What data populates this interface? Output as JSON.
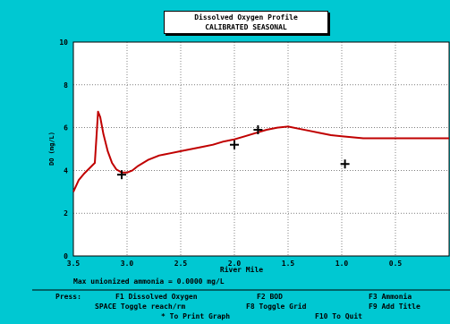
{
  "chart_data": {
    "type": "line",
    "title": "Dissolved Oxygen Profile",
    "subtitle": "CALIBRATED SEASONAL",
    "xlabel": "River Mile",
    "ylabel": "DO (mg/L)",
    "xlim": [
      3.5,
      0.0
    ],
    "ylim": [
      0,
      10
    ],
    "x_ticks": [
      "3.5",
      "3.0",
      "2.5",
      "2.0",
      "1.5",
      "1.0",
      "0.5"
    ],
    "y_ticks": [
      "0",
      "2",
      "4",
      "6",
      "8",
      "10"
    ],
    "grid": true,
    "series": [
      {
        "color": "#c00000",
        "x": [
          3.5,
          3.45,
          3.4,
          3.35,
          3.3,
          3.27,
          3.25,
          3.22,
          3.18,
          3.14,
          3.1,
          3.05,
          3.0,
          2.95,
          2.9,
          2.85,
          2.8,
          2.75,
          2.7,
          2.65,
          2.6,
          2.5,
          2.4,
          2.3,
          2.2,
          2.1,
          2.0,
          1.9,
          1.8,
          1.7,
          1.6,
          1.5,
          1.4,
          1.3,
          1.2,
          1.1,
          1.0,
          0.9,
          0.8,
          0.7,
          0.6,
          0.5,
          0.4,
          0.3,
          0.2,
          0.1,
          0.0
        ],
        "y": [
          3.0,
          3.55,
          3.85,
          4.1,
          4.35,
          6.75,
          6.5,
          5.7,
          4.9,
          4.35,
          4.05,
          3.9,
          3.9,
          4.0,
          4.2,
          4.35,
          4.5,
          4.6,
          4.7,
          4.75,
          4.8,
          4.9,
          5.0,
          5.1,
          5.2,
          5.35,
          5.45,
          5.6,
          5.75,
          5.9,
          6.0,
          6.05,
          5.95,
          5.85,
          5.75,
          5.65,
          5.6,
          5.55,
          5.5,
          5.5,
          5.5,
          5.5,
          5.5,
          5.5,
          5.5,
          5.5,
          5.5
        ]
      },
      {
        "marker": "+",
        "color": "#000000",
        "x": [
          3.05,
          2.0,
          1.78,
          0.97
        ],
        "y": [
          3.8,
          5.2,
          5.9,
          4.3
        ]
      }
    ]
  },
  "info": {
    "ammonia_line": "Max unionized ammonia = 0.0000 mg/L"
  },
  "footer": {
    "press_label": "Press:",
    "f1": "F1 Dissolved Oxygen",
    "f2": "F2 BOD",
    "f3": "F3 Ammonia",
    "space": "SPACE Toggle reach/rm",
    "f8": "F8 Toggle Grid",
    "f9": "F9 Add Title",
    "print": "* To Print Graph",
    "f10": "F10 To Quit"
  }
}
